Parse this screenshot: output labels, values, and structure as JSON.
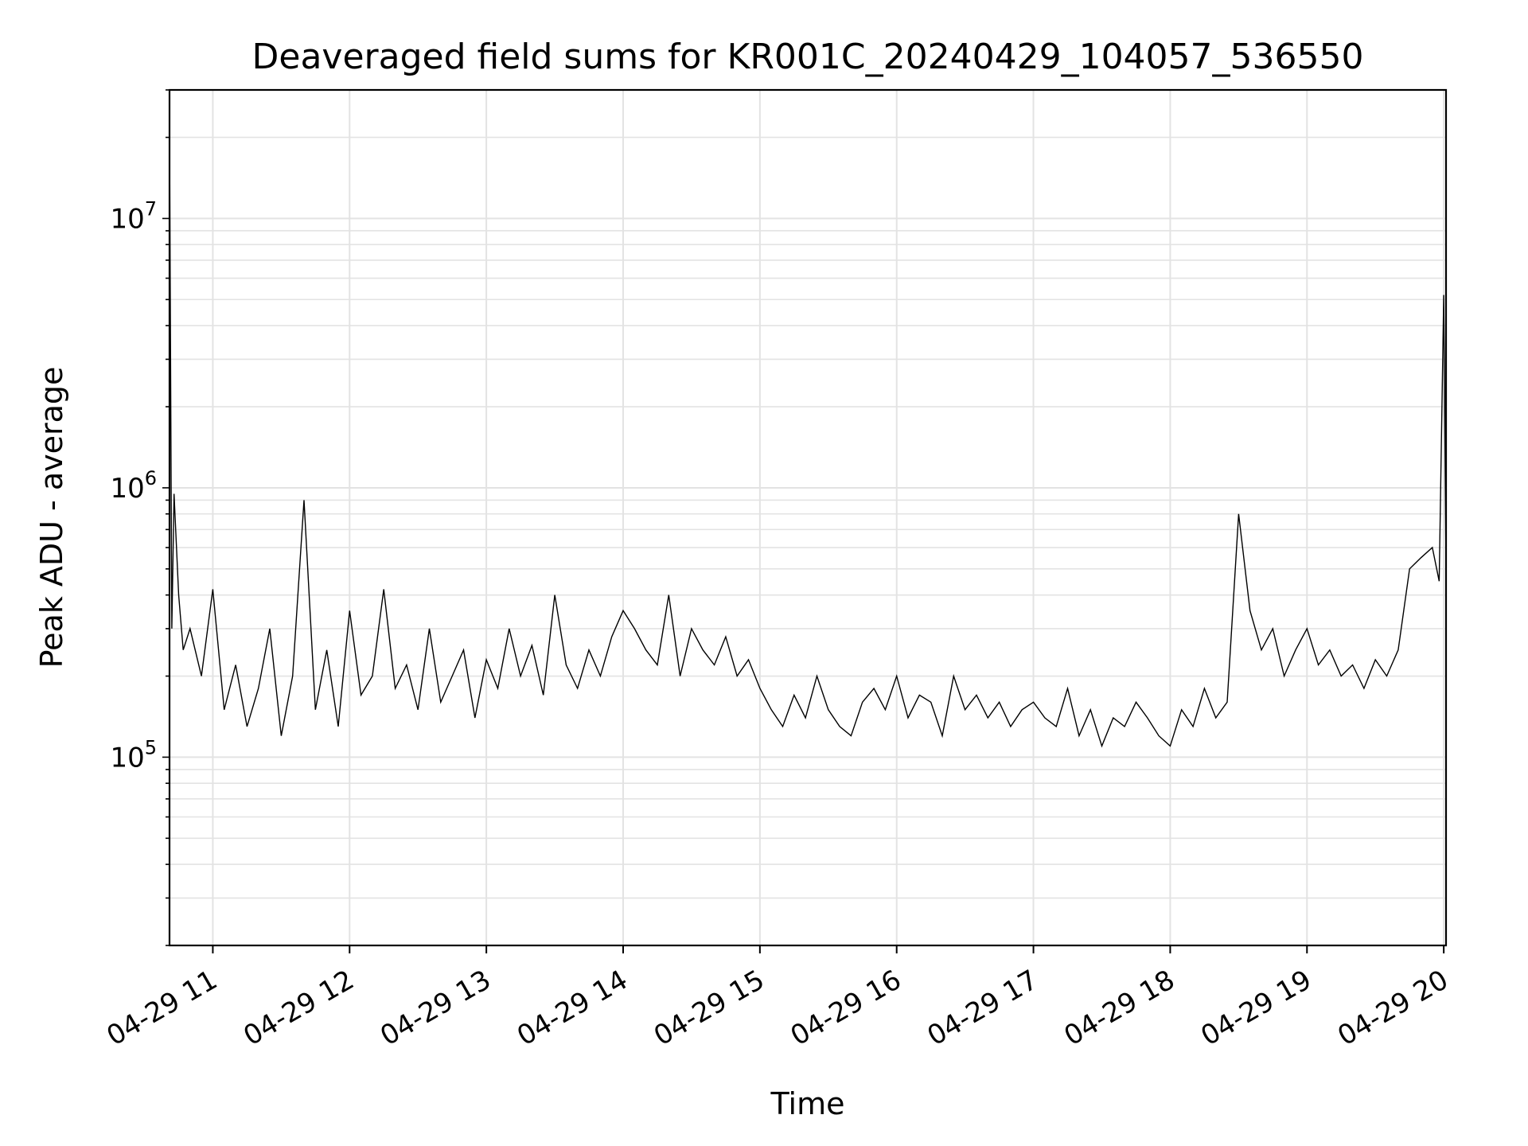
{
  "chart_data": {
    "type": "line",
    "title": "Deaveraged field sums for KR001C_20240429_104057_536550",
    "xlabel": "Time",
    "ylabel": "Peak ADU - average",
    "yscale": "log",
    "xlim": [
      "04-29 10:41",
      "04-29 20:01"
    ],
    "ylim": [
      20000,
      30000000
    ],
    "grid": true,
    "line_color": "#000000",
    "x_ticks": [
      "04-29 11",
      "04-29 12",
      "04-29 13",
      "04-29 14",
      "04-29 15",
      "04-29 16",
      "04-29 17",
      "04-29 18",
      "04-29 19",
      "04-29 20"
    ],
    "y_ticks": [
      {
        "base": "10",
        "exp": "5",
        "value": 100000
      },
      {
        "base": "10",
        "exp": "6",
        "value": 1000000
      },
      {
        "base": "10",
        "exp": "7",
        "value": 10000000
      }
    ],
    "series": [
      {
        "x": [
          "04-29 10:41",
          "04-29 10:42",
          "04-29 10:43",
          "04-29 10:45",
          "04-29 10:47",
          "04-29 10:50",
          "04-29 10:55",
          "04-29 11:00",
          "04-29 11:05",
          "04-29 11:10",
          "04-29 11:15",
          "04-29 11:20",
          "04-29 11:25",
          "04-29 11:30",
          "04-29 11:35",
          "04-29 11:40",
          "04-29 11:45",
          "04-29 11:50",
          "04-29 11:55",
          "04-29 12:00",
          "04-29 12:05",
          "04-29 12:10",
          "04-29 12:15",
          "04-29 12:20",
          "04-29 12:25",
          "04-29 12:30",
          "04-29 12:35",
          "04-29 12:40",
          "04-29 12:45",
          "04-29 12:50",
          "04-29 12:55",
          "04-29 13:00",
          "04-29 13:05",
          "04-29 13:10",
          "04-29 13:15",
          "04-29 13:20",
          "04-29 13:25",
          "04-29 13:30",
          "04-29 13:35",
          "04-29 13:40",
          "04-29 13:45",
          "04-29 13:50",
          "04-29 13:55",
          "04-29 14:00",
          "04-29 14:05",
          "04-29 14:10",
          "04-29 14:15",
          "04-29 14:20",
          "04-29 14:25",
          "04-29 14:30",
          "04-29 14:35",
          "04-29 14:40",
          "04-29 14:45",
          "04-29 14:50",
          "04-29 14:55",
          "04-29 15:00",
          "04-29 15:05",
          "04-29 15:10",
          "04-29 15:15",
          "04-29 15:20",
          "04-29 15:25",
          "04-29 15:30",
          "04-29 15:35",
          "04-29 15:40",
          "04-29 15:45",
          "04-29 15:50",
          "04-29 15:55",
          "04-29 16:00",
          "04-29 16:05",
          "04-29 16:10",
          "04-29 16:15",
          "04-29 16:20",
          "04-29 16:25",
          "04-29 16:30",
          "04-29 16:35",
          "04-29 16:40",
          "04-29 16:45",
          "04-29 16:50",
          "04-29 16:55",
          "04-29 17:00",
          "04-29 17:05",
          "04-29 17:10",
          "04-29 17:15",
          "04-29 17:20",
          "04-29 17:25",
          "04-29 17:30",
          "04-29 17:35",
          "04-29 17:40",
          "04-29 17:45",
          "04-29 17:50",
          "04-29 17:55",
          "04-29 18:00",
          "04-29 18:05",
          "04-29 18:10",
          "04-29 18:15",
          "04-29 18:20",
          "04-29 18:25",
          "04-29 18:30",
          "04-29 18:35",
          "04-29 18:40",
          "04-29 18:45",
          "04-29 18:50",
          "04-29 18:55",
          "04-29 19:00",
          "04-29 19:05",
          "04-29 19:10",
          "04-29 19:15",
          "04-29 19:20",
          "04-29 19:25",
          "04-29 19:30",
          "04-29 19:35",
          "04-29 19:40",
          "04-29 19:45",
          "04-29 19:50",
          "04-29 19:55",
          "04-29 19:58",
          "04-29 20:00",
          "04-29 20:01"
        ],
        "values": [
          21000000,
          300000,
          950000,
          400000,
          250000,
          300000,
          200000,
          420000,
          150000,
          220000,
          130000,
          180000,
          300000,
          120000,
          200000,
          900000,
          150000,
          250000,
          130000,
          350000,
          170000,
          200000,
          420000,
          180000,
          220000,
          150000,
          300000,
          160000,
          200000,
          250000,
          140000,
          230000,
          180000,
          300000,
          200000,
          260000,
          170000,
          400000,
          220000,
          180000,
          250000,
          200000,
          280000,
          350000,
          300000,
          250000,
          220000,
          400000,
          200000,
          300000,
          250000,
          220000,
          280000,
          200000,
          230000,
          180000,
          150000,
          130000,
          170000,
          140000,
          200000,
          150000,
          130000,
          120000,
          160000,
          180000,
          150000,
          200000,
          140000,
          170000,
          160000,
          120000,
          200000,
          150000,
          170000,
          140000,
          160000,
          130000,
          150000,
          160000,
          140000,
          130000,
          180000,
          120000,
          150000,
          110000,
          140000,
          130000,
          160000,
          140000,
          120000,
          110000,
          150000,
          130000,
          180000,
          140000,
          160000,
          800000,
          350000,
          250000,
          300000,
          200000,
          250000,
          300000,
          220000,
          250000,
          200000,
          220000,
          180000,
          230000,
          200000,
          250000,
          500000,
          550000,
          600000,
          450000,
          5200000,
          500000
        ]
      }
    ]
  }
}
